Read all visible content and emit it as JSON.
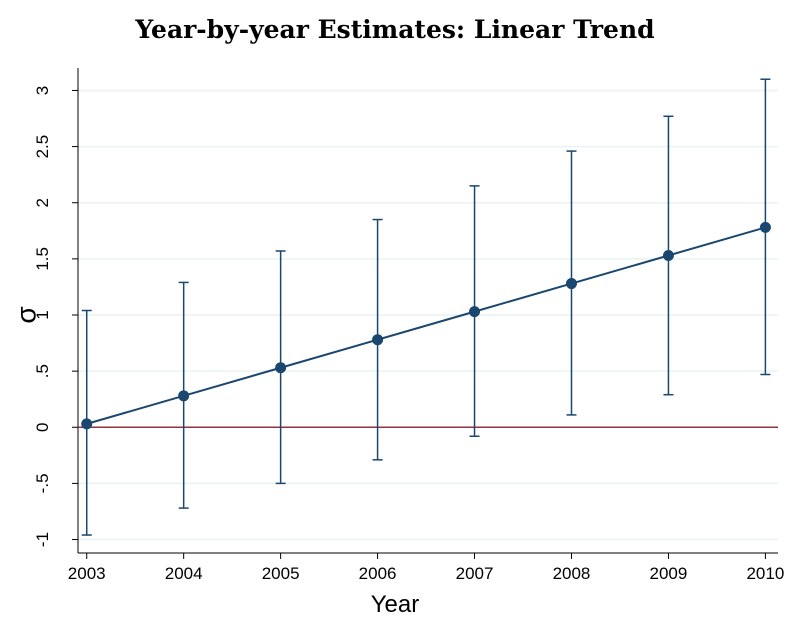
{
  "chart_data": {
    "type": "line",
    "title": "Year-by-year Estimates: Linear Trend",
    "xlabel": "Year",
    "ylabel": "σ",
    "x": [
      2003,
      2004,
      2005,
      2006,
      2007,
      2008,
      2009,
      2010
    ],
    "series": [
      {
        "color": "#1a476f",
        "values": [
          0.03,
          0.28,
          0.53,
          0.78,
          1.03,
          1.28,
          1.53,
          1.78
        ],
        "lower": [
          -0.96,
          -0.72,
          -0.5,
          -0.29,
          -0.08,
          0.11,
          0.29,
          0.47
        ],
        "upper": [
          1.04,
          1.29,
          1.57,
          1.85,
          2.15,
          2.46,
          2.77,
          3.1
        ]
      }
    ],
    "hline": 0,
    "hline_color": "#90353b",
    "xlim": [
      2002.91,
      2010.13
    ],
    "xticks": [
      2003,
      2004,
      2005,
      2006,
      2007,
      2008,
      2009,
      2010
    ],
    "ylim": [
      -1.12,
      3.2
    ],
    "yticks": [
      {
        "value": -1,
        "label": "-1"
      },
      {
        "value": -0.5,
        "label": "-.5"
      },
      0,
      {
        "value": 0.5,
        "label": ".5"
      },
      1,
      1.5,
      2,
      2.5,
      3
    ],
    "grid": true
  }
}
